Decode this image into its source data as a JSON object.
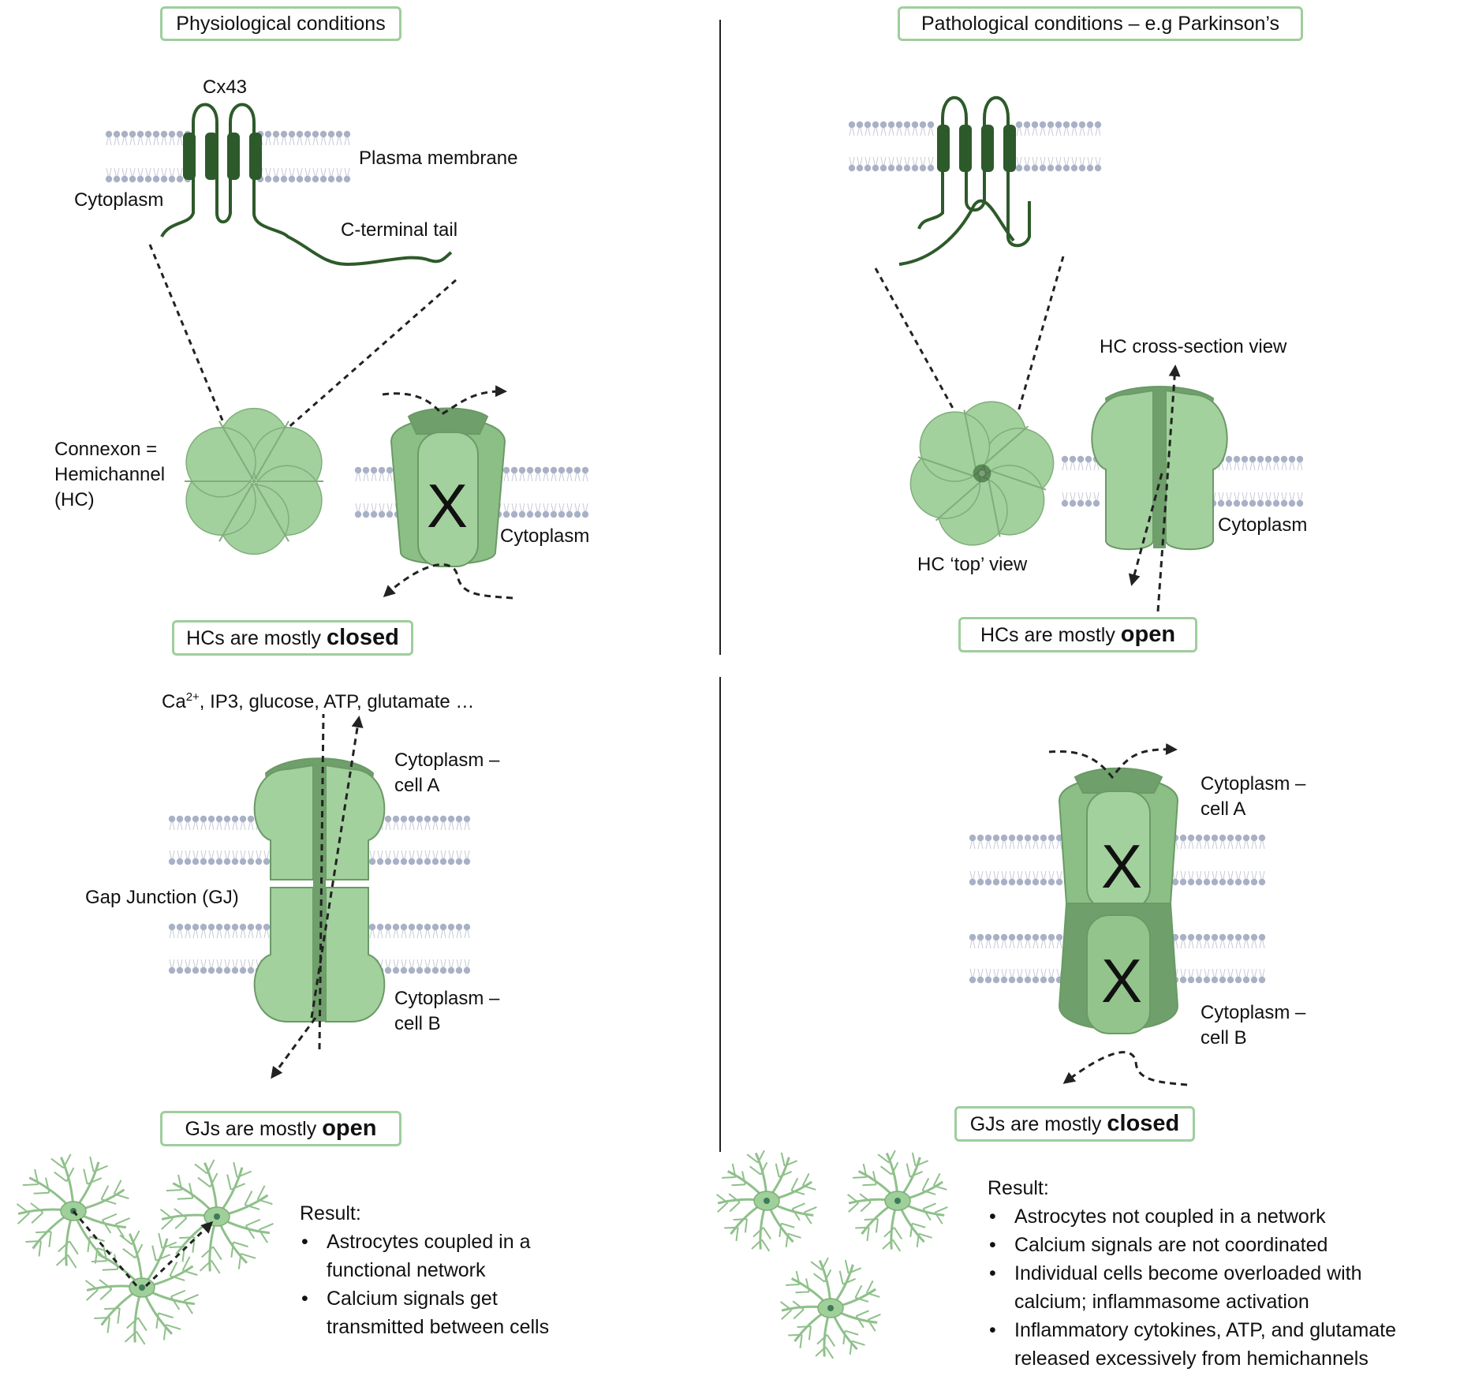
{
  "headers": {
    "physiological": "Physiological conditions",
    "pathological": "Pathological conditions – e.g Parkinson’s"
  },
  "labels": {
    "cx43": "Cx43",
    "plasma_membrane": "Plasma membrane",
    "cytoplasm": "Cytoplasm",
    "c_terminal_tail": "C-terminal tail",
    "connexon_line1": "Connexon =",
    "connexon_line2": "Hemichannel",
    "connexon_line3": "(HC)",
    "cytoplasm_hc_closed": "Cytoplasm",
    "hc_cross_section": "HC cross-section view",
    "hc_top_view": "HC ‘top’ view",
    "cytoplasm_hc_open": "Cytoplasm",
    "molecules_prefix": "Ca",
    "molecules_sup": "2+",
    "molecules_rest": ", IP3, glucose, ATP, glutamate …",
    "cytoplasm_cell_a_line1": "Cytoplasm –",
    "cytoplasm_cell_a_line2": "cell A",
    "cytoplasm_cell_b_line1": "Cytoplasm –",
    "cytoplasm_cell_b_line2": "cell B",
    "gap_junction": "Gap Junction (GJ)",
    "blocked_mark": "X"
  },
  "status": {
    "hc_phys_prefix": "HCs are mostly ",
    "hc_phys_state": "closed",
    "hc_path_prefix": "HCs are mostly ",
    "hc_path_state": "open",
    "gj_phys_prefix": "GJs are mostly ",
    "gj_phys_state": "open",
    "gj_path_prefix": "GJs are mostly ",
    "gj_path_state": "closed"
  },
  "result_phys": {
    "title": "Result:",
    "items": [
      "Astrocytes coupled in a functional network",
      "Calcium signals get transmitted between cells"
    ]
  },
  "result_path": {
    "title": "Result:",
    "items": [
      "Astrocytes not coupled in a network",
      "Calcium signals are not coordinated",
      "Individual cells become overloaded with calcium; inflammasome activation",
      "Inflammatory cytokines, ATP, and glutamate released excessively from hemichannels"
    ]
  },
  "colors": {
    "protein_dark": "#2d5a2a",
    "channel_light": "#a3d19e",
    "channel_mid": "#8bbf85",
    "channel_dark": "#6f9f6a",
    "channel_stroke": "#6b9a66",
    "lipid_head": "#a9b1c6",
    "box_border": "#9fce9c"
  }
}
